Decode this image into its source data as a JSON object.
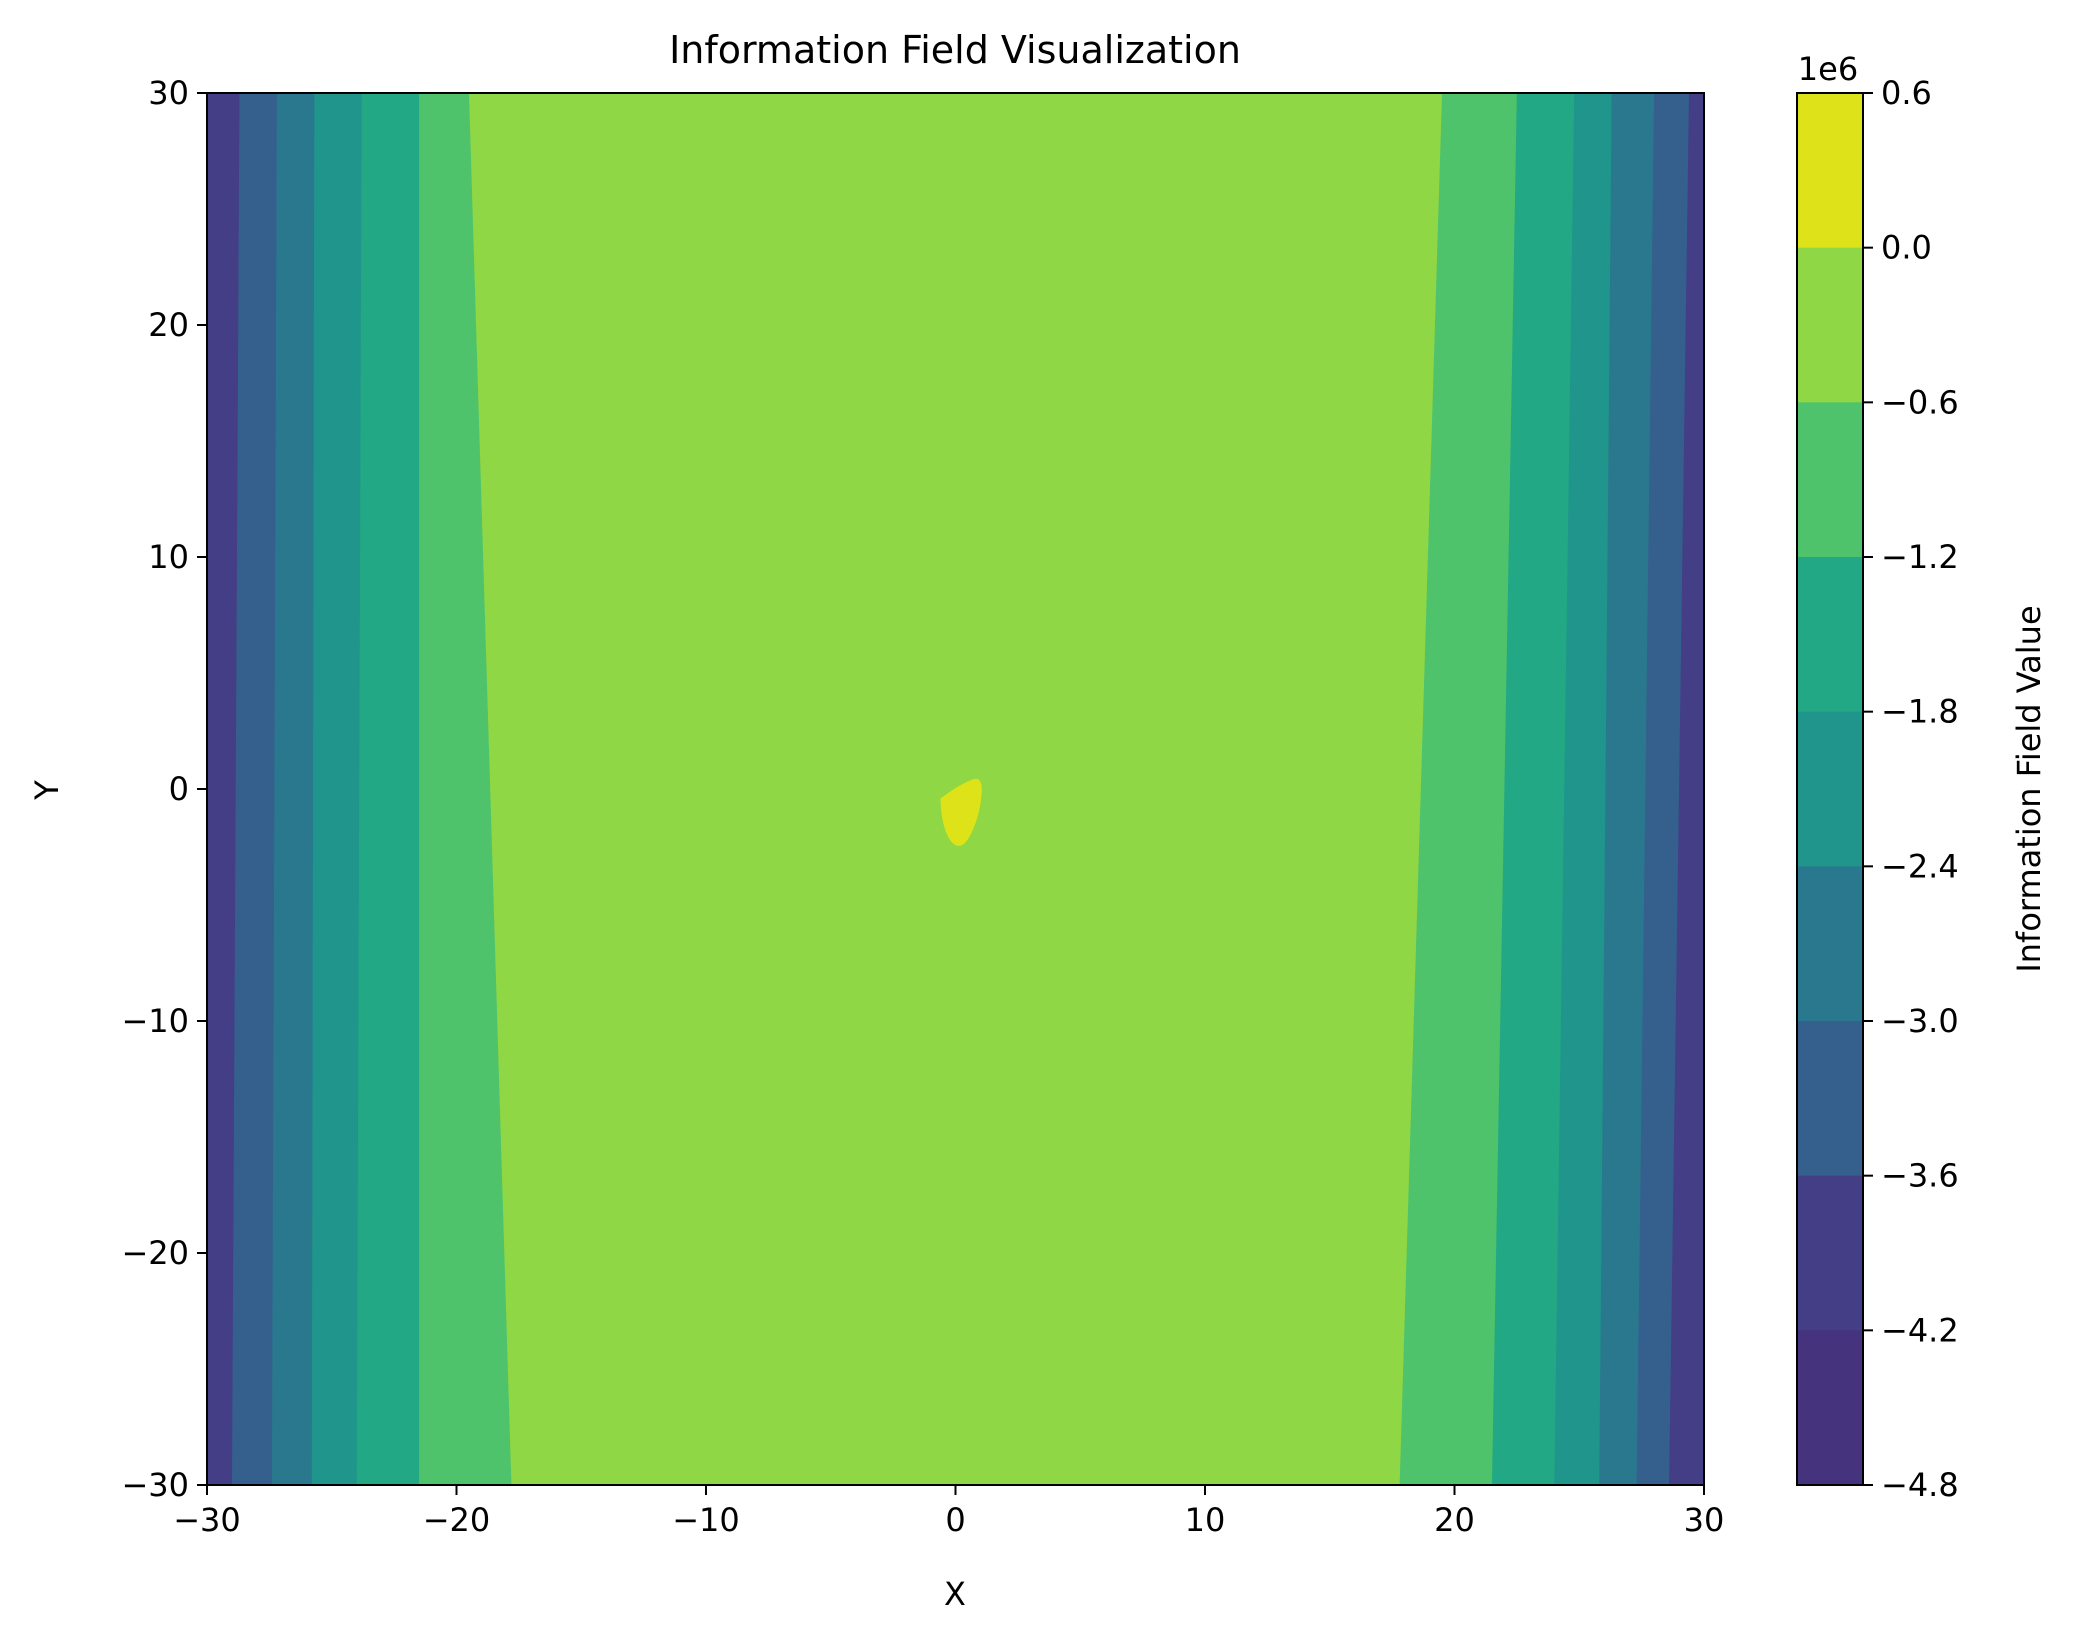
{
  "chart_data": {
    "type": "heatmap",
    "subtype": "filled-contour",
    "title": "Information Field Visualization",
    "xlabel": "X",
    "ylabel": "Y",
    "xlim": [
      -30,
      30
    ],
    "ylim": [
      -30,
      30
    ],
    "xticks": [
      "−30",
      "−20",
      "−10",
      "0",
      "10",
      "20",
      "30"
    ],
    "xtick_values": [
      -30,
      -20,
      -10,
      0,
      10,
      20,
      30
    ],
    "yticks": [
      "30",
      "20",
      "10",
      "0",
      "−10",
      "−20",
      "−30"
    ],
    "ytick_values": [
      30,
      20,
      10,
      0,
      -10,
      -20,
      -30
    ],
    "colormap": "viridis",
    "colorbar": {
      "label": "Information Field Value",
      "scale_label": "1e6",
      "ticks": [
        "0.6",
        "0.0",
        "−0.6",
        "−1.2",
        "−1.8",
        "−2.4",
        "−3.0",
        "−3.6",
        "−4.2",
        "−4.8"
      ],
      "levels": [
        0.6,
        0.0,
        -0.6,
        -1.2,
        -1.8,
        -2.4,
        -3.0,
        -3.6,
        -4.2,
        -4.8
      ],
      "colors": [
        "#dde318",
        "#8fd744",
        "#4ec36b",
        "#22a884",
        "#1f958b",
        "#2a788e",
        "#355f8d",
        "#433e85",
        "#46337e",
        "#481a6c"
      ]
    },
    "bands": [
      {
        "level_range": [
          -4.2,
          -3.6
        ],
        "color": "#433e85",
        "left": [
          [
            -30,
            30
          ],
          [
            -28.7,
            30
          ],
          [
            -29.0,
            -30
          ],
          [
            -30,
            -30
          ]
        ],
        "right": [
          [
            30,
            30
          ],
          [
            29.4,
            30
          ],
          [
            28.6,
            -30
          ],
          [
            30,
            -30
          ]
        ]
      },
      {
        "level_range": [
          -3.6,
          -3.0
        ],
        "color": "#355f8d",
        "left": [
          [
            -28.7,
            30
          ],
          [
            -27.2,
            30
          ],
          [
            -27.4,
            -30
          ],
          [
            -29.0,
            -30
          ]
        ],
        "right": [
          [
            29.4,
            30
          ],
          [
            28.0,
            30
          ],
          [
            27.3,
            -30
          ],
          [
            28.6,
            -30
          ]
        ]
      },
      {
        "level_range": [
          -3.0,
          -2.4
        ],
        "color": "#2a788e",
        "left": [
          [
            -27.2,
            30
          ],
          [
            -25.7,
            30
          ],
          [
            -25.8,
            -30
          ],
          [
            -27.4,
            -30
          ]
        ],
        "right": [
          [
            28.0,
            30
          ],
          [
            26.3,
            30
          ],
          [
            25.8,
            -30
          ],
          [
            27.3,
            -30
          ]
        ]
      },
      {
        "level_range": [
          -2.4,
          -1.8
        ],
        "color": "#1f958b",
        "left": [
          [
            -25.7,
            30
          ],
          [
            -23.8,
            30
          ],
          [
            -24.0,
            -30
          ],
          [
            -25.8,
            -30
          ]
        ],
        "right": [
          [
            26.3,
            30
          ],
          [
            24.8,
            30
          ],
          [
            24.0,
            -30
          ],
          [
            25.8,
            -30
          ]
        ]
      },
      {
        "level_range": [
          -1.8,
          -1.2
        ],
        "color": "#22a884",
        "left": [
          [
            -23.8,
            30
          ],
          [
            -21.5,
            30
          ],
          [
            -21.5,
            -30
          ],
          [
            -24.0,
            -30
          ]
        ],
        "right": [
          [
            24.8,
            30
          ],
          [
            22.5,
            30
          ],
          [
            21.5,
            -30
          ],
          [
            24.0,
            -30
          ]
        ]
      },
      {
        "level_range": [
          -1.2,
          -0.6
        ],
        "color": "#4ec36b",
        "left": [
          [
            -21.5,
            30
          ],
          [
            -19.5,
            30
          ],
          [
            -17.8,
            -30
          ],
          [
            -21.5,
            -30
          ]
        ],
        "right": [
          [
            22.5,
            30
          ],
          [
            19.5,
            30
          ],
          [
            17.8,
            -30
          ],
          [
            21.5,
            -30
          ]
        ]
      }
    ],
    "background_level_range": [
      -0.6,
      0.0
    ],
    "peak_region": {
      "level_range": [
        0.0,
        0.6
      ],
      "outline": [
        [
          -0.6,
          -0.4
        ],
        [
          0.2,
          0.2
        ],
        [
          1.1,
          0.6
        ],
        [
          1.0,
          -1.0
        ],
        [
          0.4,
          -2.5
        ],
        [
          -0.2,
          -2.4
        ],
        [
          -0.6,
          -1.2
        ]
      ]
    }
  }
}
